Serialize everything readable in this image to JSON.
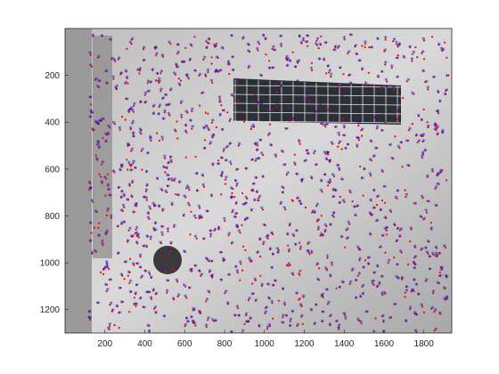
{
  "figure": {
    "background": "#ffffff",
    "axes_color": "#262626",
    "image_colormap": "grayscale aerial photograph of a building rooftop with features",
    "marker_colors": {
      "detected": "#ff0000",
      "matched": "#1a1ad6"
    }
  },
  "chart_data": {
    "type": "scatter",
    "title": "",
    "xlabel": "",
    "ylabel": "",
    "xlim": [
      0,
      1940
    ],
    "ylim": [
      0,
      1300
    ],
    "y_reversed": true,
    "grid": false,
    "legend": "none",
    "xticks": [
      "200",
      "400",
      "600",
      "800",
      "1000",
      "1200",
      "1400",
      "1600",
      "1800"
    ],
    "yticks": [
      "200",
      "400",
      "600",
      "800",
      "1000",
      "1200"
    ],
    "series": [
      {
        "marker": "dot",
        "color": "#ff0000"
      },
      {
        "marker": "asterisk",
        "color": "#1a1ad6"
      }
    ]
  }
}
